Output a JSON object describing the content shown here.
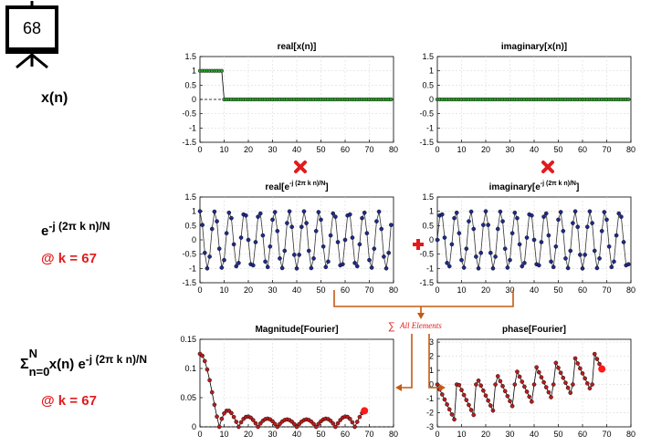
{
  "slide_number": "68",
  "labels": {
    "xn": "x(n)",
    "basis_base": "e",
    "basis_exp": "-j (2π k n)/N",
    "at_k_1": "@ k = 67",
    "sum_sigma": "Σ",
    "sum_upper": "N",
    "sum_lower": "n=0",
    "sum_body": " x(n) e",
    "sum_exp": "-j (2π k n)/N",
    "at_k_2": "@ k = 67",
    "all_elements": "All Elements"
  },
  "colors": {
    "accent_red": "#e31a1c",
    "arrow_orange": "#c55a11",
    "green_marker": "#2ca02c",
    "navy_marker": "#1f2a8a",
    "darkred_marker": "#b71c1c"
  },
  "icons": {
    "presentation": "presentation-board-icon",
    "multiply": "multiply-icon",
    "plus": "plus-icon",
    "sum": "sum-icon"
  },
  "chart_data": [
    {
      "id": "real_x",
      "type": "scatter",
      "title": "real[x(n)]",
      "n": 80,
      "values_rule": "1 for n = 0..9, 0 for n = 10..79",
      "xlim": [
        0,
        80
      ],
      "ylim": [
        -1.5,
        1.5
      ],
      "xticks": [
        0,
        10,
        20,
        30,
        40,
        50,
        60,
        70,
        80
      ],
      "yticks": [
        1.5,
        1,
        0.5,
        0,
        -0.5,
        -1,
        -1.5
      ],
      "grid": true
    },
    {
      "id": "imag_x",
      "type": "scatter",
      "title": "imaginary[x(n)]",
      "n": 80,
      "values_rule": "0 for all n",
      "xlim": [
        0,
        80
      ],
      "ylim": [
        -1.5,
        1.5
      ],
      "xticks": [
        0,
        10,
        20,
        30,
        40,
        50,
        60,
        70,
        80
      ],
      "yticks": [
        1.5,
        1,
        0.5,
        0,
        -0.5,
        -1,
        -1.5
      ],
      "grid": true
    },
    {
      "id": "real_basis",
      "type": "line",
      "title_base": "real[e",
      "title_exp": "-j (2π k n)/N",
      "title_close": "]",
      "k": 67,
      "N": 80,
      "n": 80,
      "function": "cos(2π k n / N)",
      "xlim": [
        0,
        80
      ],
      "ylim": [
        -1.5,
        1.5
      ],
      "xticks": [
        0,
        10,
        20,
        30,
        40,
        50,
        60,
        70,
        80
      ],
      "yticks": [
        1.5,
        1,
        0.5,
        0,
        -0.5,
        -1,
        -1.5
      ],
      "grid": true
    },
    {
      "id": "imag_basis",
      "type": "line",
      "title_base": "imaginary[e",
      "title_exp": "-j (2π k n)/N",
      "title_close": "]",
      "k": 67,
      "N": 80,
      "n": 80,
      "function": "-sin(2π k n / N)",
      "xlim": [
        0,
        80
      ],
      "ylim": [
        -1.5,
        1.5
      ],
      "xticks": [
        0,
        10,
        20,
        30,
        40,
        50,
        60,
        70,
        80
      ],
      "yticks": [
        1.5,
        1,
        0.5,
        0,
        -0.5,
        -1,
        -1.5
      ],
      "grid": true
    },
    {
      "id": "magnitude",
      "type": "line",
      "title": "Magnitude[Fourier]",
      "points": 69,
      "function": "|Σ x(n) e^(-j 2π k n / N)| / N, k = 0..68",
      "highlight_k": 67,
      "xlim": [
        0,
        80
      ],
      "ylim": [
        0,
        0.15
      ],
      "xticks": [
        0,
        10,
        20,
        30,
        40,
        50,
        60,
        70,
        80
      ],
      "yticks": [
        0.15,
        0.1,
        0.05,
        0
      ],
      "grid": true
    },
    {
      "id": "phase",
      "type": "line",
      "title": "phase[Fourier]",
      "points": 69,
      "function": "arg(Σ x(n) e^(-j 2π k n / N)), k = 0..68",
      "highlight_k": 67,
      "xlim": [
        0,
        80
      ],
      "ylim": [
        -3,
        3.2
      ],
      "xticks": [
        0,
        10,
        20,
        30,
        40,
        50,
        60,
        70,
        80
      ],
      "yticks": [
        3,
        2,
        1,
        0,
        -1,
        -2,
        -3
      ],
      "grid": true
    }
  ]
}
